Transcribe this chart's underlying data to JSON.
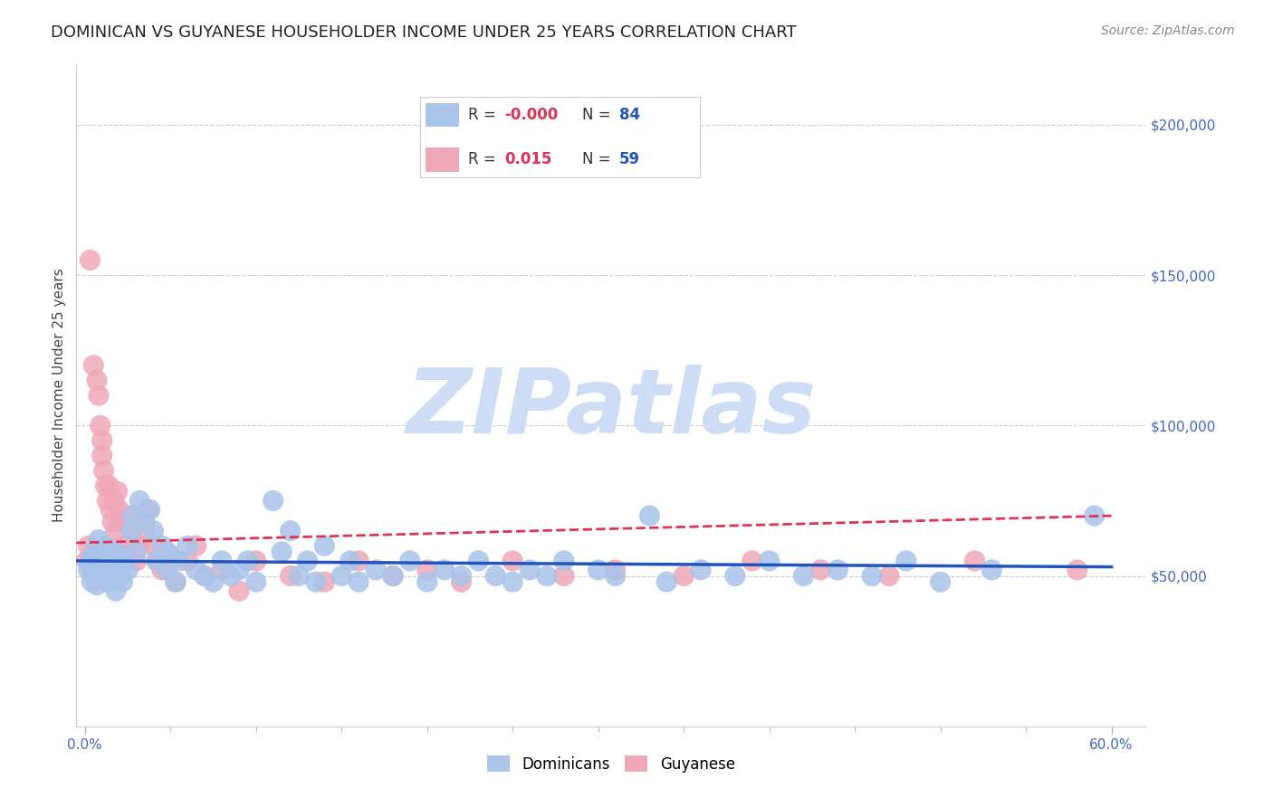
{
  "title": "DOMINICAN VS GUYANESE HOUSEHOLDER INCOME UNDER 25 YEARS CORRELATION CHART",
  "source": "Source: ZipAtlas.com",
  "ylabel_label": "Householder Income Under 25 years",
  "xlim": [
    -0.005,
    0.62
  ],
  "ylim": [
    0,
    220000
  ],
  "xtick_positions": [
    0.0,
    0.6
  ],
  "xtick_labels": [
    "0.0%",
    "60.0%"
  ],
  "ytick_positions": [
    50000,
    100000,
    150000,
    200000
  ],
  "ytick_labels": [
    "$50,000",
    "$100,000",
    "$150,000",
    "$200,000"
  ],
  "dominican_color": "#aac4ea",
  "guyanese_color": "#f0a8b8",
  "dominican_line_color": "#2255bb",
  "guyanese_line_color": "#dd3355",
  "watermark": "ZIPatlas",
  "watermark_color": "#ccddf5",
  "background_color": "#ffffff",
  "grid_color": "#cccccc",
  "dominican_x": [
    0.002,
    0.003,
    0.004,
    0.005,
    0.005,
    0.006,
    0.007,
    0.008,
    0.008,
    0.009,
    0.01,
    0.01,
    0.011,
    0.012,
    0.013,
    0.014,
    0.015,
    0.016,
    0.017,
    0.018,
    0.019,
    0.02,
    0.021,
    0.022,
    0.023,
    0.025,
    0.027,
    0.028,
    0.03,
    0.032,
    0.035,
    0.038,
    0.04,
    0.042,
    0.045,
    0.048,
    0.05,
    0.053,
    0.055,
    0.06,
    0.065,
    0.07,
    0.075,
    0.08,
    0.085,
    0.09,
    0.095,
    0.1,
    0.11,
    0.115,
    0.12,
    0.125,
    0.13,
    0.135,
    0.14,
    0.15,
    0.155,
    0.16,
    0.17,
    0.18,
    0.19,
    0.2,
    0.21,
    0.22,
    0.23,
    0.24,
    0.25,
    0.26,
    0.27,
    0.28,
    0.3,
    0.31,
    0.33,
    0.34,
    0.36,
    0.38,
    0.4,
    0.42,
    0.44,
    0.46,
    0.48,
    0.5,
    0.53,
    0.59
  ],
  "dominican_y": [
    52000,
    55000,
    48000,
    53000,
    58000,
    50000,
    47000,
    55000,
    62000,
    51000,
    49000,
    57000,
    53000,
    60000,
    48000,
    52000,
    55000,
    50000,
    58000,
    45000,
    53000,
    57000,
    50000,
    48000,
    55000,
    52000,
    65000,
    70000,
    58000,
    75000,
    68000,
    72000,
    65000,
    55000,
    60000,
    52000,
    57000,
    48000,
    55000,
    60000,
    52000,
    50000,
    48000,
    55000,
    50000,
    52000,
    55000,
    48000,
    75000,
    58000,
    65000,
    50000,
    55000,
    48000,
    60000,
    50000,
    55000,
    48000,
    52000,
    50000,
    55000,
    48000,
    52000,
    50000,
    55000,
    50000,
    48000,
    52000,
    50000,
    55000,
    52000,
    50000,
    70000,
    48000,
    52000,
    50000,
    55000,
    50000,
    52000,
    50000,
    55000,
    48000,
    52000,
    70000
  ],
  "guyanese_x": [
    0.001,
    0.002,
    0.003,
    0.004,
    0.005,
    0.006,
    0.007,
    0.007,
    0.008,
    0.009,
    0.01,
    0.01,
    0.011,
    0.012,
    0.013,
    0.014,
    0.015,
    0.016,
    0.017,
    0.018,
    0.019,
    0.02,
    0.021,
    0.022,
    0.023,
    0.025,
    0.027,
    0.028,
    0.03,
    0.032,
    0.035,
    0.037,
    0.04,
    0.042,
    0.045,
    0.048,
    0.05,
    0.053,
    0.06,
    0.065,
    0.07,
    0.08,
    0.09,
    0.1,
    0.12,
    0.14,
    0.16,
    0.18,
    0.2,
    0.22,
    0.25,
    0.28,
    0.31,
    0.35,
    0.39,
    0.43,
    0.47,
    0.52,
    0.58
  ],
  "guyanese_y": [
    55000,
    60000,
    155000,
    52000,
    120000,
    58000,
    115000,
    50000,
    110000,
    100000,
    90000,
    95000,
    85000,
    80000,
    75000,
    80000,
    72000,
    68000,
    75000,
    65000,
    78000,
    72000,
    68000,
    55000,
    60000,
    70000,
    65000,
    58000,
    55000,
    60000,
    65000,
    72000,
    60000,
    55000,
    52000,
    58000,
    55000,
    48000,
    55000,
    60000,
    50000,
    52000,
    45000,
    55000,
    50000,
    48000,
    55000,
    50000,
    52000,
    48000,
    55000,
    50000,
    52000,
    50000,
    55000,
    52000,
    50000,
    55000,
    52000
  ],
  "dom_trendline_y0": 55000,
  "dom_trendline_y1": 53000,
  "guy_trendline_y0": 61000,
  "guy_trendline_y1": 70000,
  "title_fontsize": 13,
  "axis_label_fontsize": 11,
  "tick_fontsize": 11,
  "legend_r1_color": "#dd3355",
  "legend_n1_color": "#2255bb",
  "legend_r2_color": "#dd3355",
  "legend_n2_color": "#2255bb"
}
